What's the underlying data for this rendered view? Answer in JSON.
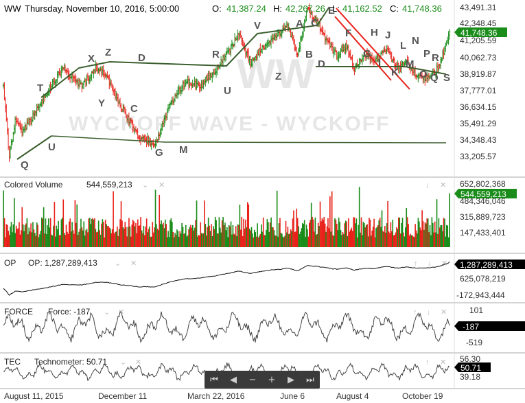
{
  "header": {
    "symbol": "WW",
    "datetime": "Thursday, November 10, 2016, 5:00:00",
    "open_label": "O:",
    "open": "41,387.24",
    "high_label": "H:",
    "high": "42,267.26",
    "low_label": "L:",
    "low": "41,162.52",
    "close_label": "C:",
    "close": "41,748.36"
  },
  "colors": {
    "up": "#1a8c1a",
    "down": "#e8221b",
    "trend": "#3a5f2e",
    "channel": "#e8221b",
    "watermark": "#e6e6e6",
    "tag_green": "#1a8c1a",
    "tag_black": "#000000"
  },
  "watermark": {
    "big": "WW",
    "small": "WYCKOFF WAVE - WYCKOFF"
  },
  "price_pane": {
    "ticks": [
      "43,491.31",
      "42,348.45",
      "41,205.59",
      "40,062.73",
      "38,919.87",
      "37,777.01",
      "36,634.15",
      "35,491.29",
      "34,348.43",
      "33,205.57"
    ],
    "tick_values": [
      43491.31,
      42348.45,
      41205.59,
      40062.73,
      38919.87,
      37777.01,
      36634.15,
      35491.29,
      34348.43,
      33205.57
    ],
    "current_tag": "41,748.36",
    "wave_labels": [
      "Q",
      "T",
      "U",
      "X",
      "Y",
      "Z",
      "C",
      "D",
      "G",
      "M",
      "R",
      "U",
      "V",
      "Z",
      "A",
      "B",
      "C",
      "D",
      "E",
      "F",
      "G",
      "H",
      "J",
      "I",
      "K",
      "L",
      "M",
      "N",
      "O",
      "P",
      "Q",
      "R",
      "S"
    ]
  },
  "volume_pane": {
    "title": "Colored Volume",
    "value": "544,559,213",
    "ticks": [
      "652,802,368",
      "484,346,046",
      "315,889,723",
      "147,433,401"
    ],
    "current_tag": "544,559,213"
  },
  "op_pane": {
    "short": "OP",
    "label": "OP: 1,287,289,413",
    "ticks": [
      "625,078,219",
      "-172,943,444"
    ],
    "current_tag": "1,287,289,413"
  },
  "force_pane": {
    "short": "FORCE",
    "label": "Force: -187",
    "ticks": [
      "101",
      "-519"
    ],
    "current_tag": "-187"
  },
  "tec_pane": {
    "short": "TEC",
    "label": "Technometer: 50.71",
    "ticks": [
      "56.30",
      "39.18"
    ],
    "current_tag": "50.71"
  },
  "x_axis": {
    "labels": [
      "August 11, 2015",
      "December 11",
      "March 22, 2016",
      "June 6",
      "August 4",
      "October 19"
    ]
  },
  "controls": {
    "collapse": "⌄",
    "close": "✕",
    "up": "↑",
    "down": "↓"
  },
  "navigator": {
    "first": "⏮",
    "prev": "◀",
    "zoom_out": "−",
    "zoom_in": "+",
    "next": "▶",
    "last": "⏭"
  },
  "chart_data": {
    "type": "ohlc",
    "title": "WW",
    "price_anchors": {
      "x_days": [
        0,
        6,
        12,
        20,
        40,
        60,
        80,
        95,
        105,
        120,
        140,
        155,
        170,
        185,
        200,
        215,
        228,
        240,
        252,
        262,
        275,
        290,
        300,
        310,
        320,
        330,
        340,
        350,
        358,
        368,
        380,
        392,
        400,
        410,
        418,
        428,
        436,
        445,
        455
      ],
      "close": [
        38100,
        33000,
        35500,
        34800,
        37000,
        39200,
        38000,
        39300,
        38700,
        36500,
        34300,
        34000,
        36700,
        38200,
        38000,
        38900,
        40200,
        41600,
        39600,
        40500,
        41200,
        42200,
        40200,
        43400,
        42400,
        41100,
        40100,
        40800,
        39000,
        40200,
        39800,
        40600,
        39200,
        39700,
        38900,
        38400,
        38600,
        39400,
        41748
      ]
    },
    "volume_range": [
      0,
      652802368
    ],
    "op_range": [
      -172943444,
      1287289413
    ],
    "force_range": [
      -519,
      101
    ],
    "tec_range": [
      39.18,
      56.3
    ],
    "last_volume": 544559213,
    "last_op": 1287289413,
    "last_force": -187,
    "last_tec": 50.71
  }
}
